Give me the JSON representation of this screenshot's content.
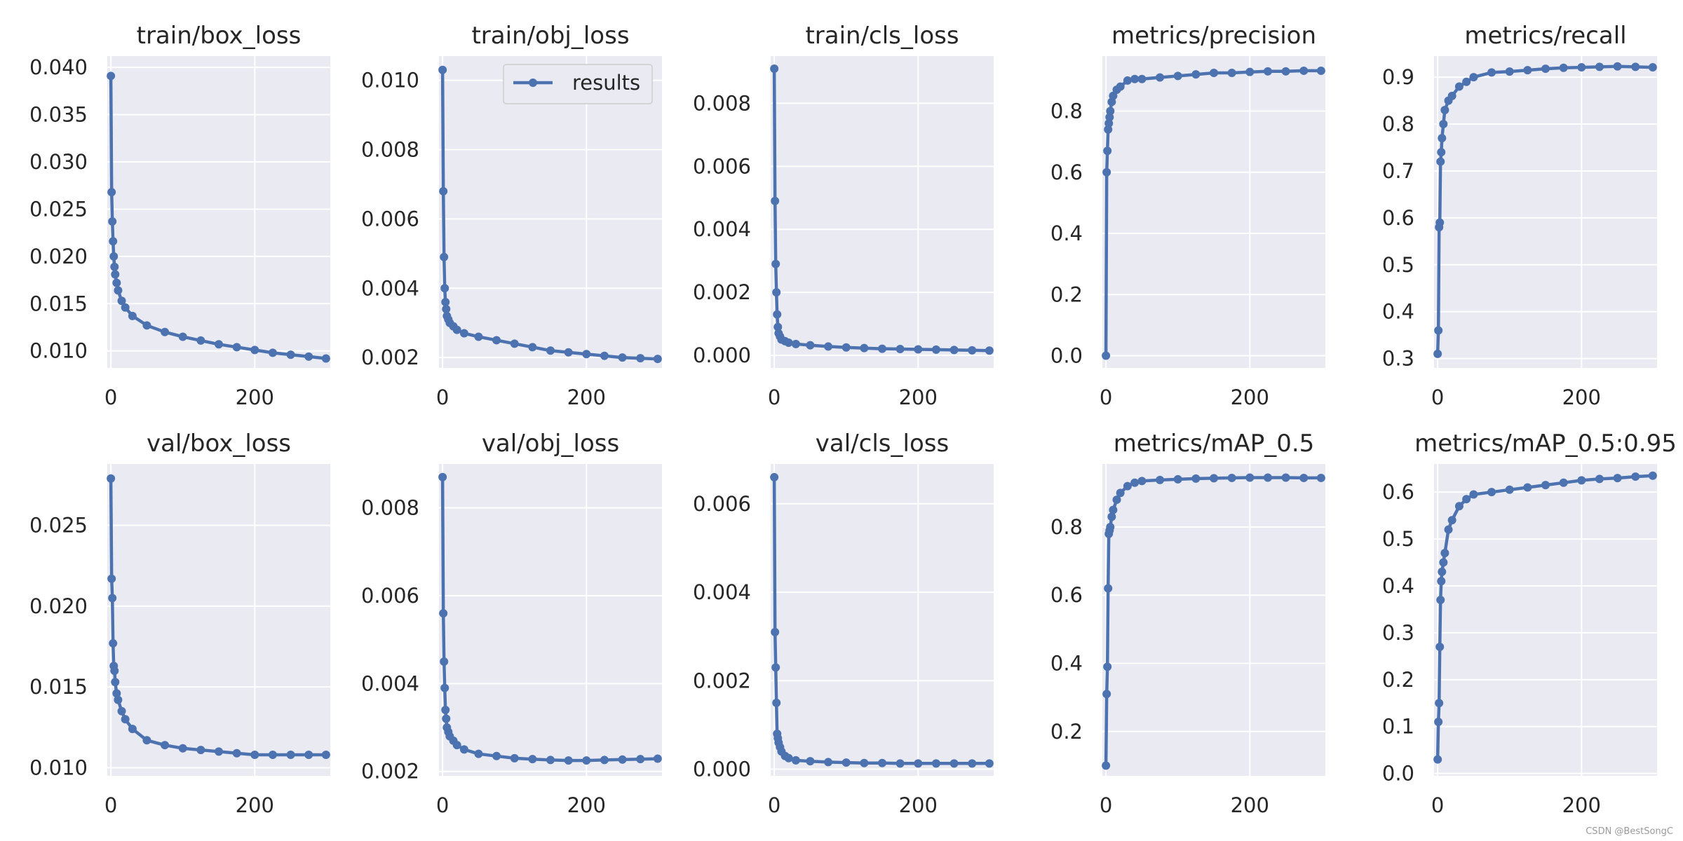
{
  "figure": {
    "legend_label": "results",
    "watermark": "CSDN @BestSongC",
    "colors": {
      "series": "#4c72b0",
      "panel_bg": "#eaeaf2",
      "grid": "#ffffff",
      "text": "#262626"
    }
  },
  "chart_data": [
    {
      "type": "line",
      "title": "train/box_loss",
      "xlim": [
        -5,
        305
      ],
      "ylim": [
        0.0082,
        0.0412
      ],
      "xticks": [
        0,
        200
      ],
      "xtick_labels": [
        "0",
        "200"
      ],
      "yticks": [
        0.01,
        0.015,
        0.02,
        0.025,
        0.03,
        0.035,
        0.04
      ],
      "ytick_labels": [
        "0.010",
        "0.015",
        "0.020",
        "0.025",
        "0.030",
        "0.035",
        "0.040"
      ],
      "x": [
        0,
        1,
        2,
        3,
        4,
        5,
        6,
        8,
        10,
        15,
        20,
        30,
        50,
        75,
        100,
        125,
        150,
        175,
        200,
        225,
        250,
        275,
        299
      ],
      "series": [
        {
          "values": [
            0.0391,
            0.0268,
            0.0237,
            0.0216,
            0.02,
            0.0189,
            0.0181,
            0.0172,
            0.0164,
            0.0153,
            0.0146,
            0.0137,
            0.0127,
            0.012,
            0.0115,
            0.0111,
            0.0107,
            0.0104,
            0.0101,
            0.0098,
            0.0096,
            0.0094,
            0.0092
          ]
        }
      ]
    },
    {
      "type": "line",
      "title": "train/obj_loss",
      "xlim": [
        -5,
        305
      ],
      "ylim": [
        0.0017,
        0.0107
      ],
      "xticks": [
        0,
        200
      ],
      "xtick_labels": [
        "0",
        "200"
      ],
      "yticks": [
        0.002,
        0.004,
        0.006,
        0.008,
        0.01
      ],
      "ytick_labels": [
        "0.002",
        "0.004",
        "0.006",
        "0.008",
        "0.010"
      ],
      "x": [
        0,
        1,
        2,
        3,
        4,
        5,
        6,
        8,
        10,
        15,
        20,
        30,
        50,
        75,
        100,
        125,
        150,
        175,
        200,
        225,
        250,
        275,
        299
      ],
      "series": [
        {
          "name": "results",
          "values": [
            0.0103,
            0.0068,
            0.0049,
            0.004,
            0.0036,
            0.0034,
            0.0032,
            0.0031,
            0.003,
            0.0029,
            0.0028,
            0.0027,
            0.0026,
            0.0025,
            0.0024,
            0.0023,
            0.0022,
            0.00215,
            0.0021,
            0.00205,
            0.002,
            0.00198,
            0.00196
          ]
        }
      ]
    },
    {
      "type": "line",
      "title": "train/cls_loss",
      "xlim": [
        -5,
        305
      ],
      "ylim": [
        -0.0004,
        0.0095
      ],
      "xticks": [
        0,
        200
      ],
      "xtick_labels": [
        "0",
        "200"
      ],
      "yticks": [
        0.0,
        0.002,
        0.004,
        0.006,
        0.008
      ],
      "ytick_labels": [
        "0.000",
        "0.002",
        "0.004",
        "0.006",
        "0.008"
      ],
      "x": [
        0,
        1,
        2,
        3,
        4,
        5,
        6,
        8,
        10,
        15,
        20,
        30,
        50,
        75,
        100,
        125,
        150,
        175,
        200,
        225,
        250,
        275,
        299
      ],
      "series": [
        {
          "values": [
            0.0091,
            0.0049,
            0.0029,
            0.002,
            0.0013,
            0.0009,
            0.0007,
            0.0006,
            0.0005,
            0.00045,
            0.0004,
            0.00036,
            0.00032,
            0.00028,
            0.00025,
            0.00023,
            0.00021,
            0.0002,
            0.00019,
            0.00018,
            0.00017,
            0.00016,
            0.00015
          ]
        }
      ]
    },
    {
      "type": "line",
      "title": "metrics/precision",
      "xlim": [
        -5,
        305
      ],
      "ylim": [
        -0.04,
        0.98
      ],
      "xticks": [
        0,
        200
      ],
      "xtick_labels": [
        "0",
        "200"
      ],
      "yticks": [
        0.0,
        0.2,
        0.4,
        0.6,
        0.8
      ],
      "ytick_labels": [
        "0.0",
        "0.2",
        "0.4",
        "0.6",
        "0.8"
      ],
      "x": [
        0,
        1,
        2,
        3,
        4,
        5,
        6,
        8,
        10,
        15,
        20,
        30,
        40,
        50,
        75,
        100,
        125,
        150,
        175,
        200,
        225,
        250,
        275,
        299
      ],
      "series": [
        {
          "values": [
            0.0,
            0.6,
            0.67,
            0.74,
            0.76,
            0.78,
            0.8,
            0.83,
            0.85,
            0.87,
            0.88,
            0.9,
            0.905,
            0.905,
            0.91,
            0.915,
            0.92,
            0.925,
            0.925,
            0.928,
            0.93,
            0.93,
            0.932,
            0.932
          ]
        }
      ]
    },
    {
      "type": "line",
      "title": "metrics/recall",
      "xlim": [
        -5,
        305
      ],
      "ylim": [
        0.28,
        0.945
      ],
      "xticks": [
        0,
        200
      ],
      "xtick_labels": [
        "0",
        "200"
      ],
      "yticks": [
        0.3,
        0.4,
        0.5,
        0.6,
        0.7,
        0.8,
        0.9
      ],
      "ytick_labels": [
        "0.3",
        "0.4",
        "0.5",
        "0.6",
        "0.7",
        "0.8",
        "0.9"
      ],
      "x": [
        0,
        1,
        2,
        3,
        4,
        5,
        6,
        8,
        10,
        15,
        20,
        30,
        40,
        50,
        75,
        100,
        125,
        150,
        175,
        200,
        225,
        250,
        275,
        299
      ],
      "series": [
        {
          "values": [
            0.31,
            0.36,
            0.58,
            0.59,
            0.72,
            0.74,
            0.77,
            0.8,
            0.83,
            0.85,
            0.86,
            0.88,
            0.89,
            0.9,
            0.91,
            0.912,
            0.915,
            0.918,
            0.92,
            0.921,
            0.922,
            0.923,
            0.922,
            0.921
          ]
        }
      ]
    },
    {
      "type": "line",
      "title": "val/box_loss",
      "xlim": [
        -5,
        305
      ],
      "ylim": [
        0.0095,
        0.0288
      ],
      "xticks": [
        0,
        200
      ],
      "xtick_labels": [
        "0",
        "200"
      ],
      "yticks": [
        0.01,
        0.015,
        0.02,
        0.025
      ],
      "ytick_labels": [
        "0.010",
        "0.015",
        "0.020",
        "0.025"
      ],
      "x": [
        0,
        1,
        2,
        3,
        4,
        5,
        6,
        8,
        10,
        15,
        20,
        30,
        50,
        75,
        100,
        125,
        150,
        175,
        200,
        225,
        250,
        275,
        299
      ],
      "series": [
        {
          "values": [
            0.0279,
            0.0217,
            0.0205,
            0.0177,
            0.0163,
            0.016,
            0.0153,
            0.0146,
            0.0142,
            0.0135,
            0.013,
            0.0124,
            0.0117,
            0.0114,
            0.0112,
            0.0111,
            0.011,
            0.0109,
            0.0108,
            0.0108,
            0.0108,
            0.0108,
            0.0108
          ]
        }
      ]
    },
    {
      "type": "line",
      "title": "val/obj_loss",
      "xlim": [
        -5,
        305
      ],
      "ylim": [
        0.0019,
        0.009
      ],
      "xticks": [
        0,
        200
      ],
      "xtick_labels": [
        "0",
        "200"
      ],
      "yticks": [
        0.002,
        0.004,
        0.006,
        0.008
      ],
      "ytick_labels": [
        "0.002",
        "0.004",
        "0.006",
        "0.008"
      ],
      "x": [
        0,
        1,
        2,
        3,
        4,
        5,
        6,
        8,
        10,
        15,
        20,
        30,
        50,
        75,
        100,
        125,
        150,
        175,
        200,
        225,
        250,
        275,
        299
      ],
      "series": [
        {
          "values": [
            0.0087,
            0.0056,
            0.0045,
            0.0039,
            0.0034,
            0.0032,
            0.003,
            0.0029,
            0.0028,
            0.0027,
            0.0026,
            0.0025,
            0.0024,
            0.00235,
            0.0023,
            0.00228,
            0.00226,
            0.00225,
            0.00225,
            0.00226,
            0.00227,
            0.00228,
            0.00229
          ]
        }
      ]
    },
    {
      "type": "line",
      "title": "val/cls_loss",
      "xlim": [
        -5,
        305
      ],
      "ylim": [
        -0.00015,
        0.0069
      ],
      "xticks": [
        0,
        200
      ],
      "xtick_labels": [
        "0",
        "200"
      ],
      "yticks": [
        0.0,
        0.002,
        0.004,
        0.006
      ],
      "ytick_labels": [
        "0.000",
        "0.002",
        "0.004",
        "0.006"
      ],
      "x": [
        0,
        1,
        2,
        3,
        4,
        5,
        6,
        8,
        10,
        15,
        20,
        30,
        50,
        75,
        100,
        125,
        150,
        175,
        200,
        225,
        250,
        275,
        299
      ],
      "series": [
        {
          "values": [
            0.0066,
            0.0031,
            0.0023,
            0.0015,
            0.0008,
            0.0007,
            0.0006,
            0.0005,
            0.0004,
            0.0003,
            0.00025,
            0.0002,
            0.00018,
            0.00016,
            0.00015,
            0.00014,
            0.00014,
            0.00013,
            0.00013,
            0.00013,
            0.00013,
            0.00013,
            0.00013
          ]
        }
      ]
    },
    {
      "type": "line",
      "title": "metrics/mAP_0.5",
      "xlim": [
        -5,
        305
      ],
      "ylim": [
        0.07,
        0.985
      ],
      "xticks": [
        0,
        200
      ],
      "xtick_labels": [
        "0",
        "200"
      ],
      "yticks": [
        0.2,
        0.4,
        0.6,
        0.8
      ],
      "ytick_labels": [
        "0.2",
        "0.4",
        "0.6",
        "0.8"
      ],
      "x": [
        0,
        1,
        2,
        3,
        4,
        5,
        6,
        8,
        10,
        15,
        20,
        30,
        40,
        50,
        75,
        100,
        125,
        150,
        175,
        200,
        225,
        250,
        275,
        299
      ],
      "series": [
        {
          "values": [
            0.1,
            0.31,
            0.39,
            0.62,
            0.78,
            0.79,
            0.8,
            0.83,
            0.85,
            0.88,
            0.9,
            0.92,
            0.93,
            0.935,
            0.938,
            0.94,
            0.942,
            0.943,
            0.944,
            0.945,
            0.945,
            0.945,
            0.944,
            0.944
          ]
        }
      ]
    },
    {
      "type": "line",
      "title": "metrics/mAP_0.5:0.95",
      "xlim": [
        -5,
        305
      ],
      "ylim": [
        -0.005,
        0.66
      ],
      "xticks": [
        0,
        200
      ],
      "xtick_labels": [
        "0",
        "200"
      ],
      "yticks": [
        0.0,
        0.1,
        0.2,
        0.3,
        0.4,
        0.5,
        0.6
      ],
      "ytick_labels": [
        "0.0",
        "0.1",
        "0.2",
        "0.3",
        "0.4",
        "0.5",
        "0.6"
      ],
      "x": [
        0,
        1,
        2,
        3,
        4,
        5,
        6,
        8,
        10,
        15,
        20,
        30,
        40,
        50,
        75,
        100,
        125,
        150,
        175,
        200,
        225,
        250,
        275,
        299
      ],
      "series": [
        {
          "values": [
            0.03,
            0.11,
            0.15,
            0.27,
            0.37,
            0.41,
            0.43,
            0.45,
            0.47,
            0.52,
            0.54,
            0.57,
            0.585,
            0.595,
            0.6,
            0.605,
            0.61,
            0.615,
            0.62,
            0.625,
            0.628,
            0.63,
            0.633,
            0.635
          ]
        }
      ]
    }
  ]
}
